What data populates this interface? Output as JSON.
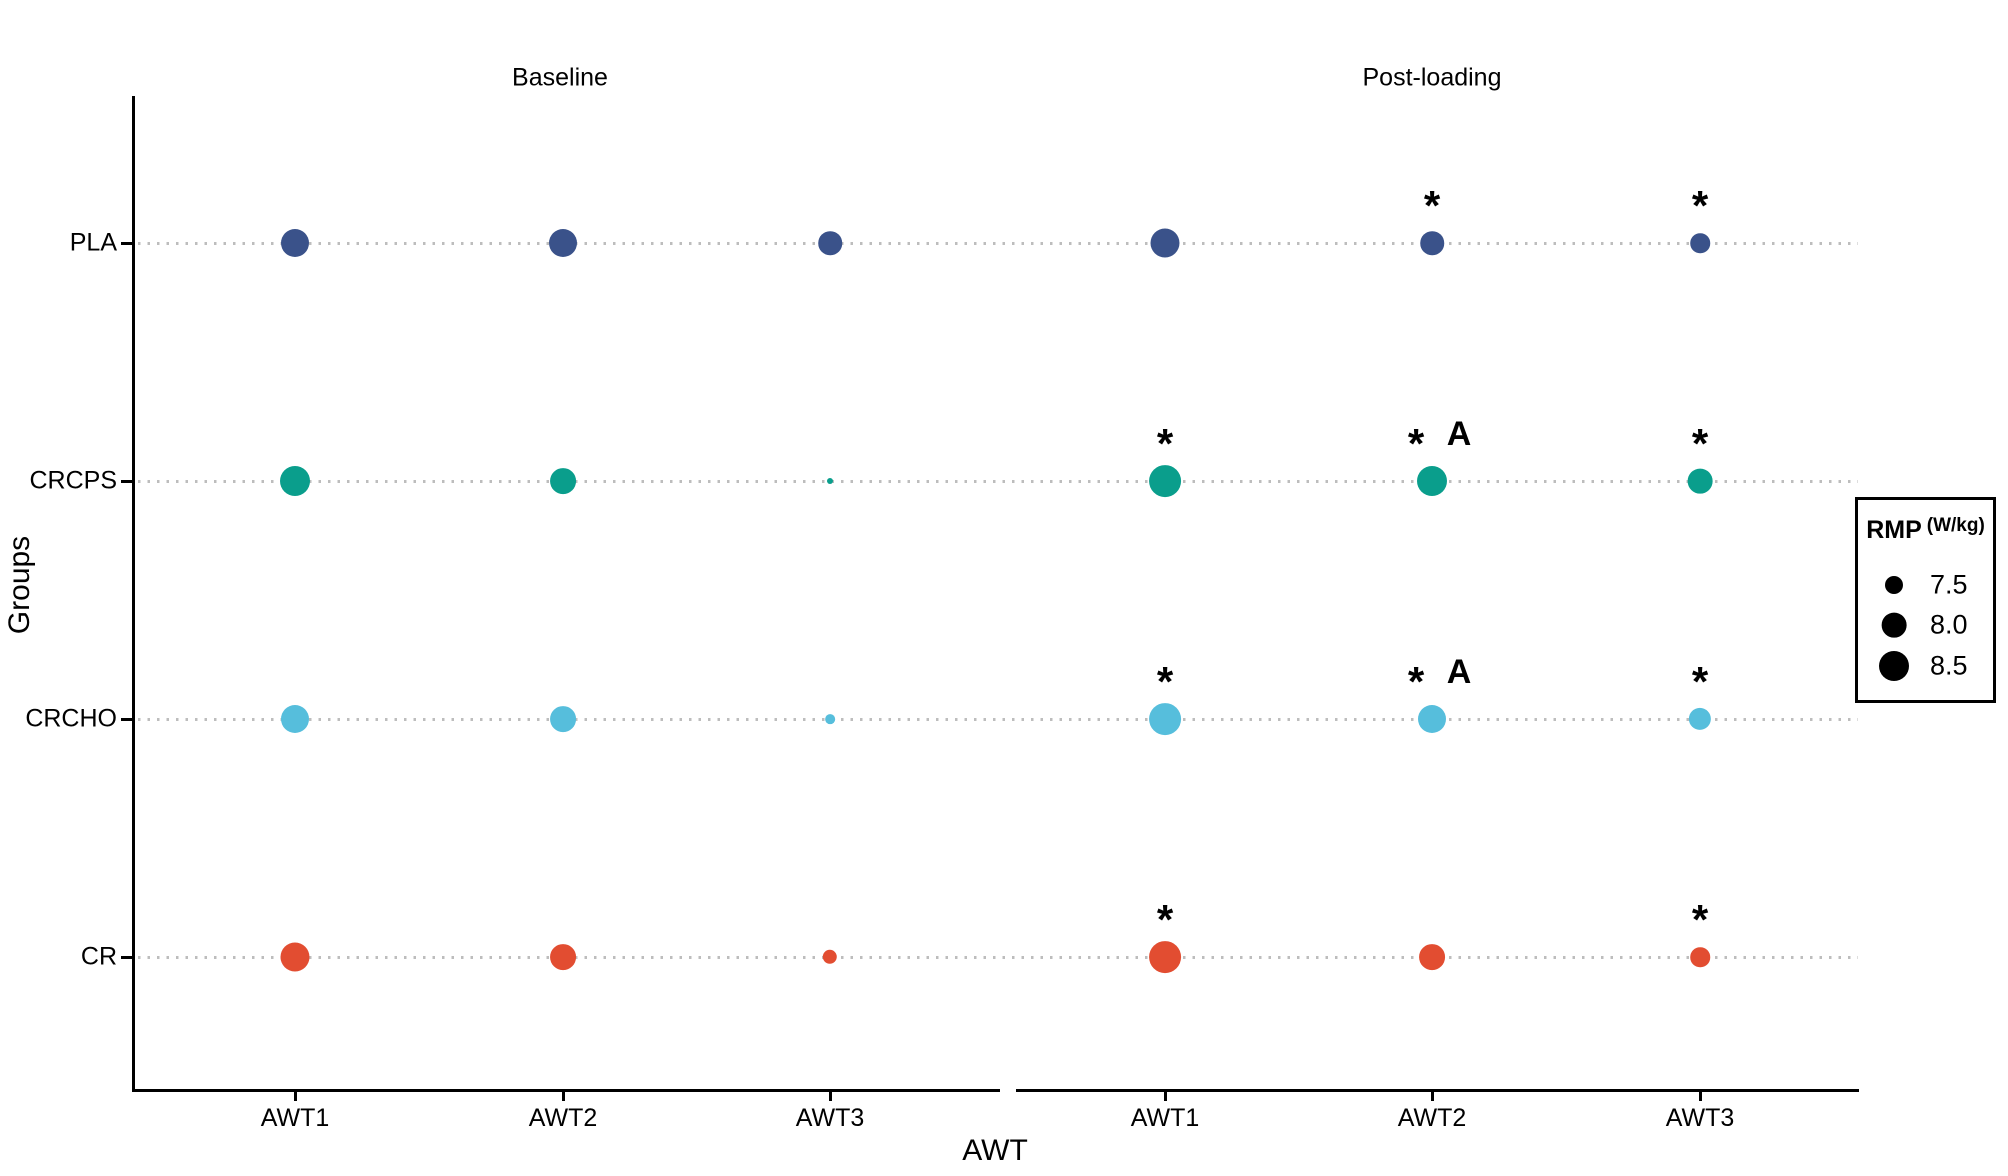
{
  "figure": {
    "facet_titles": [
      "Baseline",
      "Post-loading"
    ],
    "x_axis_label": "AWT",
    "y_axis_label": "Groups"
  },
  "legend": {
    "title": "RMP",
    "title_unit": "(W/kg)",
    "entries": [
      {
        "value": 7.5,
        "label": "7.5"
      },
      {
        "value": 8.0,
        "label": "8.0"
      },
      {
        "value": 8.5,
        "label": "8.5"
      }
    ]
  },
  "chart_data": {
    "type": "scatter",
    "subtype": "bubble",
    "size_encoding": "RMP (W/kg)",
    "facets": [
      "Baseline",
      "Post-loading"
    ],
    "x_categories": [
      "AWT1",
      "AWT2",
      "AWT3"
    ],
    "y_categories": [
      "PLA",
      "CRCPS",
      "CRCHO",
      "CR"
    ],
    "size_legend_values": [
      7.5,
      8.0,
      8.5
    ],
    "groups": [
      {
        "name": "PLA",
        "color": "#3A528A",
        "baseline_rmp": [
          8.3,
          8.3,
          7.9
        ],
        "post_rmp": [
          8.4,
          7.9,
          7.6
        ],
        "baseline_annotations": [
          "",
          "",
          ""
        ],
        "post_annotations": [
          "",
          "*",
          "*"
        ]
      },
      {
        "name": "CRCPS",
        "color": "#0A9E8C",
        "baseline_rmp": [
          8.5,
          8.1,
          7.0
        ],
        "post_rmp": [
          8.7,
          8.5,
          8.0
        ],
        "baseline_annotations": [
          "",
          "",
          ""
        ],
        "post_annotations": [
          "*",
          "*A",
          "*"
        ]
      },
      {
        "name": "CRCHO",
        "color": "#56BEDC",
        "baseline_rmp": [
          8.3,
          8.1,
          7.1
        ],
        "post_rmp": [
          8.7,
          8.3,
          7.8
        ],
        "baseline_annotations": [
          "",
          "",
          ""
        ],
        "post_annotations": [
          "*",
          "*A",
          "*"
        ]
      },
      {
        "name": "CR",
        "color": "#E24D31",
        "baseline_rmp": [
          8.4,
          8.1,
          7.3
        ],
        "post_rmp": [
          8.7,
          8.1,
          7.6
        ],
        "baseline_annotations": [
          "",
          "",
          ""
        ],
        "post_annotations": [
          "*",
          "",
          "*"
        ]
      }
    ]
  }
}
